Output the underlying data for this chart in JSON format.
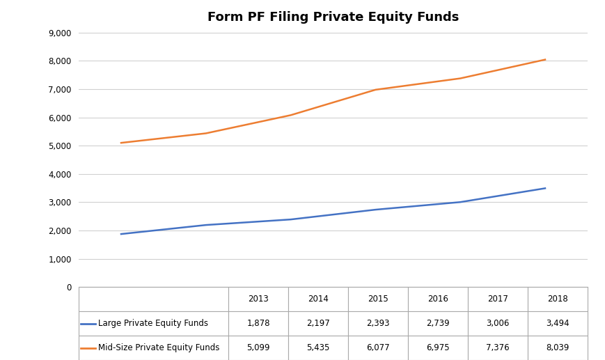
{
  "title": "Form PF Filing Private Equity Funds",
  "years": [
    2013,
    2014,
    2015,
    2016,
    2017,
    2018
  ],
  "large_pe": [
    1878,
    2197,
    2393,
    2739,
    3006,
    3494
  ],
  "midsize_pe": [
    5099,
    5435,
    6077,
    6975,
    7376,
    8039
  ],
  "large_pe_color": "#4472C4",
  "midsize_pe_color": "#ED7D31",
  "large_pe_label": "Large Private Equity Funds",
  "midsize_pe_label": "Mid-Size Private Equity Funds",
  "ylim": [
    0,
    9000
  ],
  "yticks": [
    0,
    1000,
    2000,
    3000,
    4000,
    5000,
    6000,
    7000,
    8000,
    9000
  ],
  "background_color": "#FFFFFF",
  "grid_color": "#D0D0D0",
  "title_fontsize": 13,
  "tick_fontsize": 8.5,
  "table_fontsize": 8.5,
  "table_row1": [
    "",
    "2013",
    "2014",
    "2015",
    "2016",
    "2017",
    "2018"
  ],
  "table_row2": [
    "Large Private Equity Funds",
    "1,878",
    "2,197",
    "2,393",
    "2,739",
    "3,006",
    "3,494"
  ],
  "table_row3": [
    "Mid-Size Private Equity Funds",
    "5,099",
    "5,435",
    "6,077",
    "6,975",
    "7,376",
    "8,039"
  ],
  "border_color": "#AAAAAA",
  "line_width": 1.8
}
